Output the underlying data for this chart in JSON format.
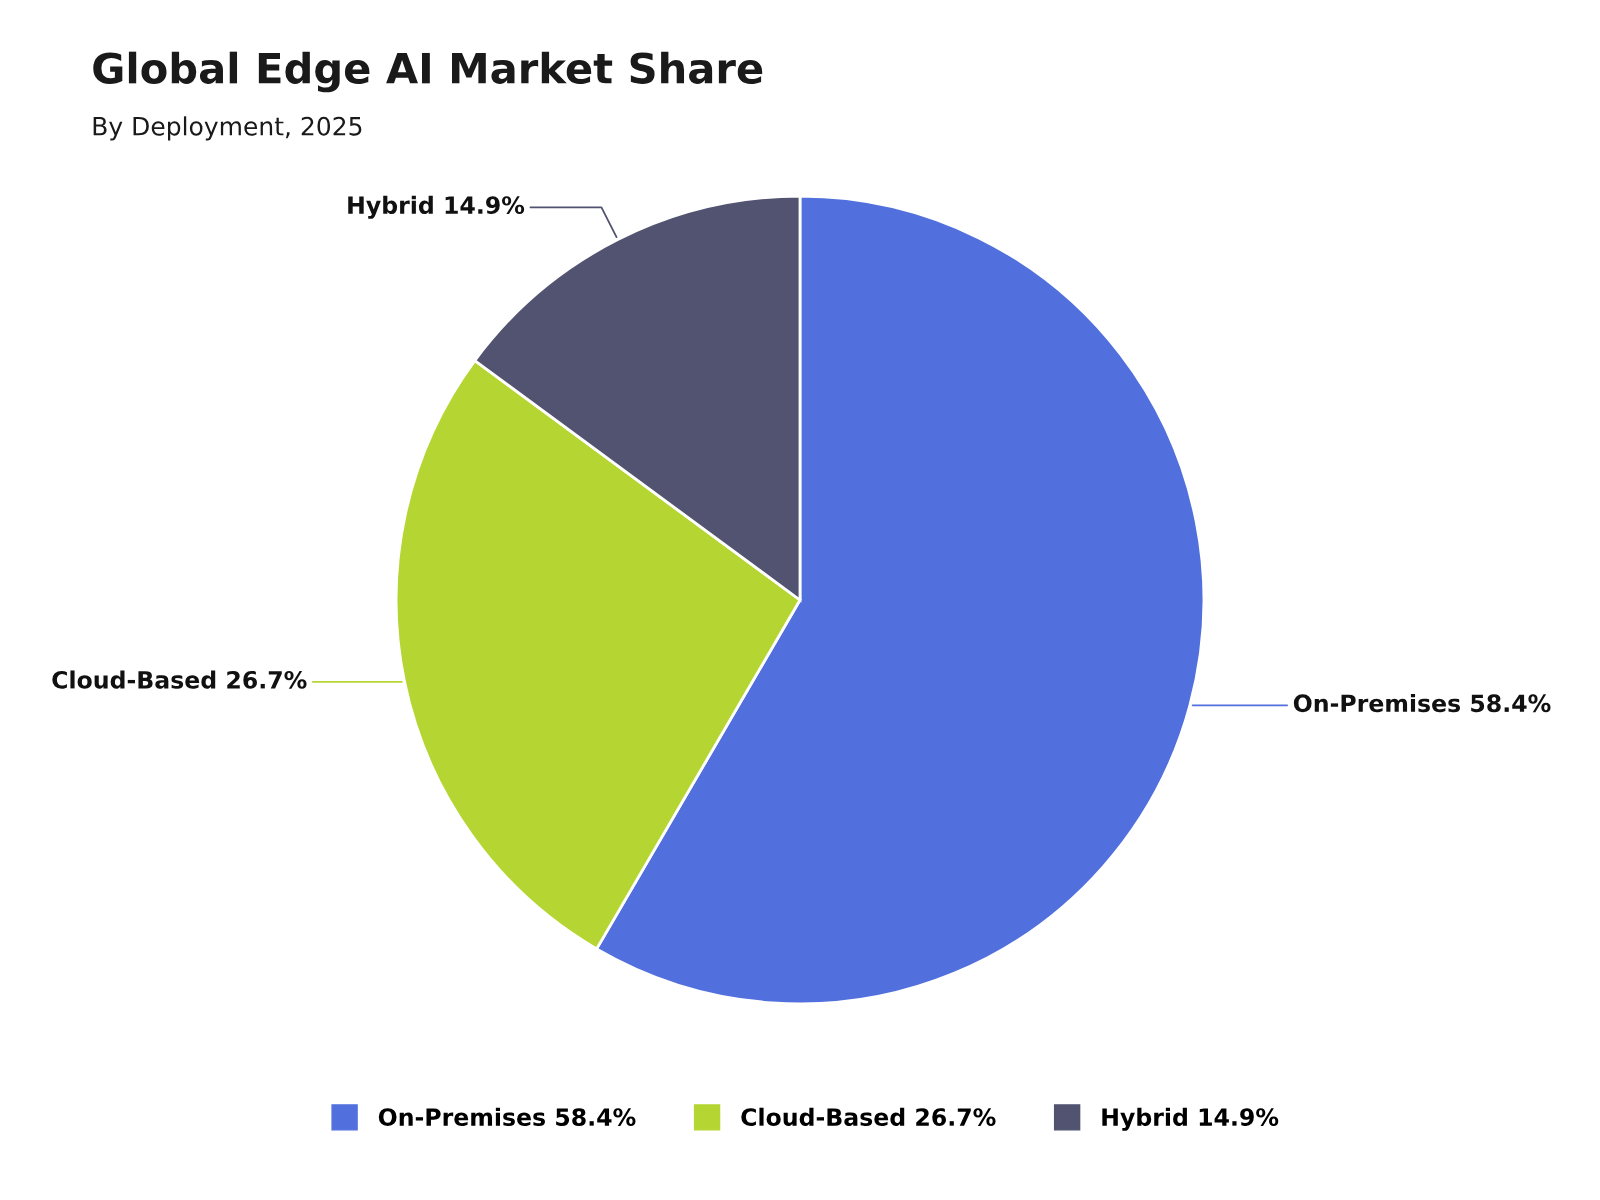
{
  "chart_data": {
    "type": "pie",
    "title": "Global Edge AI Market Share",
    "subtitle": "By Deployment, 2025",
    "categories": [
      "On-Premises 58.4%",
      "Cloud-Based 26.7%",
      "Hybrid 14.9%"
    ],
    "values": [
      58.4,
      26.7,
      14.9
    ],
    "colors": [
      "#5170dd",
      "#b5d632",
      "#515370"
    ],
    "legend": "bottom"
  }
}
